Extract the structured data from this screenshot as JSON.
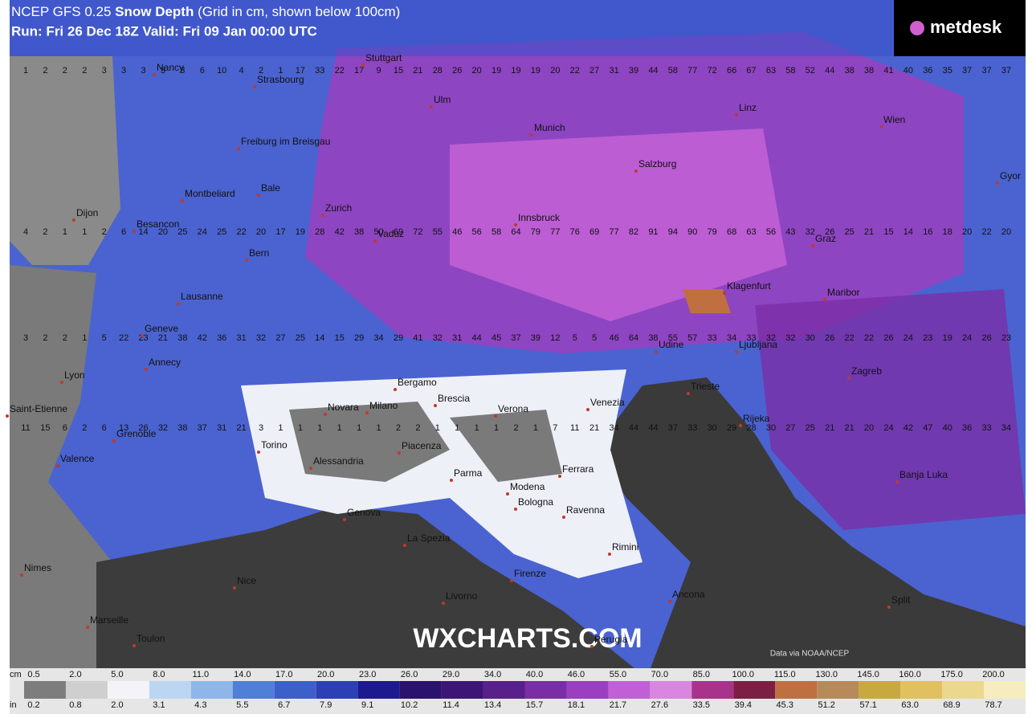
{
  "header": {
    "title_prefix": "NCEP GFS 0.25",
    "title_bold": "Snow Depth",
    "title_suffix": "(Grid in cm, shown below 100cm)",
    "run": "Run: Fri 26 Dec 18Z Valid: Fri 09 Jan 00:00 UTC",
    "logo": "metdesk"
  },
  "watermark": "WXCHARTS.COM",
  "credit": "Data via NOAA/NCEP",
  "cities": [
    "Nancy",
    "Stuttgart",
    "Strasbourg",
    "Ulm",
    "Linz",
    "Munich",
    "Wien",
    "Freiburg im Breisgau",
    "Salzburg",
    "Gyor",
    "Montbeliard",
    "Bale",
    "Zurich",
    "Dijon",
    "Innsbruck",
    "Besancon",
    "Vaduz",
    "Graz",
    "Bern",
    "Lausanne",
    "Klagenfurt",
    "Maribor",
    "Geneve",
    "Udine",
    "Ljubljana",
    "Annecy",
    "Lyon",
    "Bergamo",
    "Brescia",
    "Trieste",
    "Zagreb",
    "Venezia",
    "Saint-Etienne",
    "Novara",
    "Milano",
    "Verona",
    "Rijeka",
    "Grenoble",
    "Piacenza",
    "Torino",
    "Valence",
    "Alessandria",
    "Parma",
    "Ferrara",
    "Modena",
    "Bologna",
    "Banja Luka",
    "Genova",
    "Ravenna",
    "La Spezia",
    "Rimini",
    "Nimes",
    "Firenze",
    "Nice",
    "Livorno",
    "Ancona",
    "Split",
    "Marseille",
    "Toulon",
    "Perugia"
  ],
  "grid_rows": [
    [
      1,
      2,
      2,
      2,
      3,
      3,
      3,
      3,
      3,
      6,
      10,
      4,
      2,
      1,
      17,
      33,
      22,
      17,
      9,
      15,
      21,
      28,
      26,
      20,
      19,
      19,
      19,
      20,
      22,
      27,
      31,
      39,
      44,
      58,
      77,
      72,
      66,
      67,
      63,
      58,
      52,
      44,
      38,
      38,
      41,
      40,
      36,
      35,
      37,
      37,
      37
    ],
    [
      4,
      2,
      1,
      1,
      2,
      6,
      14,
      20,
      25,
      24,
      25,
      22,
      20,
      17,
      19,
      28,
      42,
      38,
      50,
      69,
      72,
      55,
      46,
      56,
      58,
      64,
      79,
      77,
      76,
      69,
      77,
      82,
      91,
      94,
      90,
      79,
      68,
      63,
      56,
      43,
      32,
      26,
      25,
      21,
      15,
      14,
      16,
      18,
      20,
      22,
      20
    ],
    [
      3,
      2,
      2,
      1,
      5,
      22,
      23,
      21,
      38,
      42,
      36,
      31,
      32,
      27,
      25,
      14,
      15,
      29,
      34,
      29,
      41,
      32,
      31,
      44,
      45,
      37,
      39,
      12,
      5,
      5,
      46,
      64,
      38,
      55,
      57,
      33,
      34,
      33,
      32,
      32,
      30,
      26,
      22,
      22,
      26,
      24,
      23,
      19,
      24,
      26,
      23
    ],
    [
      11,
      15,
      6,
      2,
      6,
      13,
      26,
      32,
      38,
      37,
      31,
      21,
      3,
      1,
      1,
      1,
      1,
      1,
      1,
      2,
      2,
      1,
      1,
      1,
      1,
      2,
      1,
      7,
      11,
      21,
      34,
      44,
      44,
      37,
      33,
      30,
      29,
      28,
      30,
      27,
      25,
      21,
      21,
      20,
      24,
      42,
      47,
      40,
      36,
      33,
      34
    ]
  ],
  "legend": {
    "cm_unit": "cm",
    "in_unit": "in",
    "cm": [
      "0.5",
      "2.0",
      "5.0",
      "8.0",
      "11.0",
      "14.0",
      "17.0",
      "20.0",
      "23.0",
      "26.0",
      "29.0",
      "34.0",
      "40.0",
      "46.0",
      "55.0",
      "70.0",
      "85.0",
      "100.0",
      "115.0",
      "130.0",
      "145.0",
      "160.0",
      "175.0",
      "200.0"
    ],
    "in": [
      "0.2",
      "0.8",
      "2.0",
      "3.1",
      "4.3",
      "5.5",
      "6.7",
      "7.9",
      "9.1",
      "10.2",
      "11.4",
      "13.4",
      "15.7",
      "18.1",
      "21.7",
      "27.6",
      "33.5",
      "39.4",
      "45.3",
      "51.2",
      "57.1",
      "63.0",
      "68.9",
      "78.7"
    ],
    "colors": [
      "#7d7d7d",
      "#cfcfcf",
      "#f4f4f8",
      "#bcd6f2",
      "#8fb6ea",
      "#4f7fd6",
      "#3d5fc8",
      "#2c3fb4",
      "#1c1a8e",
      "#2a136e",
      "#3c1677",
      "#57208a",
      "#7a2ea6",
      "#9a3fc0",
      "#c15fd6",
      "#d886e0",
      "#a8338a",
      "#7d1f44",
      "#c07040",
      "#b78a5a",
      "#c8a840",
      "#e0c060",
      "#ecd88c",
      "#f6ecc0"
    ]
  }
}
